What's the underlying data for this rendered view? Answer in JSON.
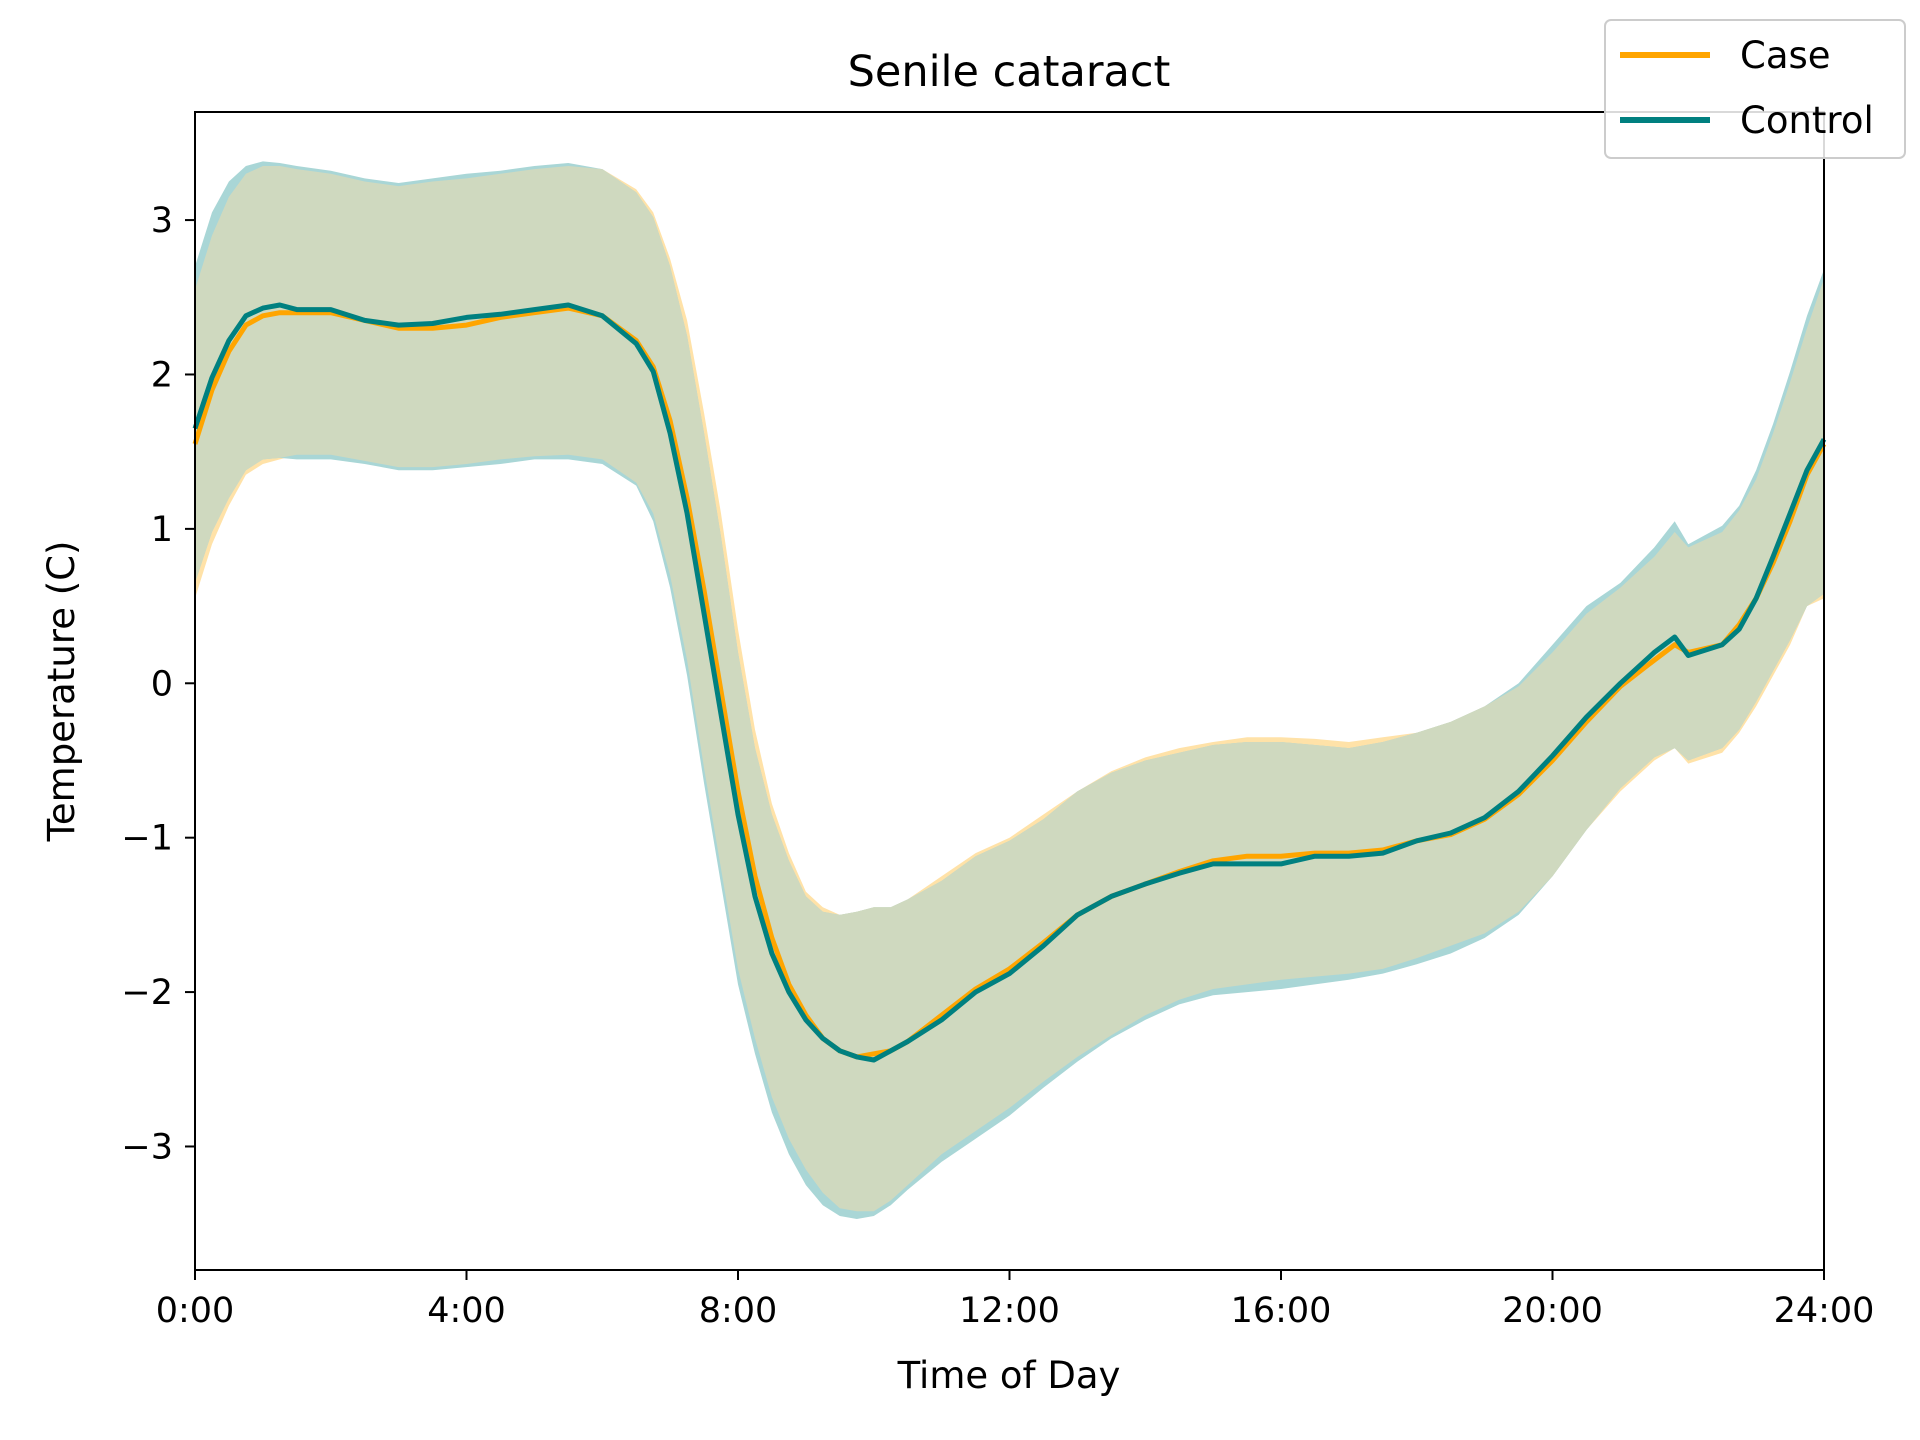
{
  "chart_data": {
    "type": "line",
    "title": "Senile cataract",
    "xlabel": "Time of Day",
    "ylabel": "Temperature (C)",
    "xlim": [
      0,
      24
    ],
    "ylim": [
      -3.8,
      3.7
    ],
    "xticks": [
      0,
      4,
      8,
      12,
      16,
      20,
      24
    ],
    "xtick_labels": [
      "0:00",
      "4:00",
      "8:00",
      "12:00",
      "16:00",
      "20:00",
      "24:00"
    ],
    "yticks": [
      3,
      2,
      1,
      0,
      -1,
      -2,
      -3
    ],
    "ytick_labels": [
      "3",
      "2",
      "1",
      "0",
      "−1",
      "−2",
      "−3"
    ],
    "grid": false,
    "legend_position": "top-right",
    "colors": {
      "case_line": "#FFA500",
      "case_band": "#FFE2A8",
      "control_line": "#008080",
      "control_band": "#A9D6D6",
      "overlap_band": "#CFD9BF"
    },
    "series": [
      {
        "name": "Case",
        "x": [
          0,
          0.25,
          0.5,
          0.75,
          1,
          1.25,
          1.5,
          2,
          2.5,
          3,
          3.5,
          4,
          4.5,
          5,
          5.5,
          6,
          6.5,
          6.75,
          7,
          7.25,
          7.5,
          7.75,
          8,
          8.25,
          8.5,
          8.75,
          9,
          9.25,
          9.5,
          9.75,
          10,
          10.25,
          10.5,
          11,
          11.5,
          12,
          12.5,
          13,
          13.5,
          14,
          14.5,
          15,
          15.5,
          16,
          16.5,
          17,
          17.5,
          18,
          18.5,
          19,
          19.5,
          20,
          20.5,
          21,
          21.5,
          21.8,
          22,
          22.5,
          22.75,
          23,
          23.25,
          23.5,
          23.75,
          24
        ],
        "mean": [
          1.55,
          1.9,
          2.15,
          2.32,
          2.38,
          2.4,
          2.4,
          2.4,
          2.35,
          2.3,
          2.3,
          2.32,
          2.37,
          2.4,
          2.43,
          2.38,
          2.22,
          2.05,
          1.7,
          1.2,
          0.6,
          -0.05,
          -0.7,
          -1.25,
          -1.65,
          -1.95,
          -2.15,
          -2.3,
          -2.38,
          -2.42,
          -2.4,
          -2.38,
          -2.32,
          -2.15,
          -1.98,
          -1.85,
          -1.68,
          -1.5,
          -1.38,
          -1.3,
          -1.22,
          -1.15,
          -1.12,
          -1.12,
          -1.1,
          -1.1,
          -1.08,
          -1.02,
          -0.98,
          -0.88,
          -0.72,
          -0.5,
          -0.25,
          -0.02,
          0.15,
          0.25,
          0.2,
          0.25,
          0.38,
          0.55,
          0.78,
          1.05,
          1.35,
          1.55
        ],
        "upper": [
          2.55,
          2.9,
          3.15,
          3.3,
          3.35,
          3.35,
          3.33,
          3.3,
          3.25,
          3.22,
          3.25,
          3.27,
          3.3,
          3.33,
          3.35,
          3.33,
          3.2,
          3.05,
          2.75,
          2.35,
          1.75,
          1.1,
          0.35,
          -0.3,
          -0.78,
          -1.1,
          -1.35,
          -1.45,
          -1.5,
          -1.48,
          -1.45,
          -1.45,
          -1.4,
          -1.25,
          -1.1,
          -1.0,
          -0.85,
          -0.7,
          -0.57,
          -0.48,
          -0.42,
          -0.38,
          -0.35,
          -0.35,
          -0.36,
          -0.38,
          -0.35,
          -0.32,
          -0.25,
          -0.15,
          -0.02,
          0.2,
          0.45,
          0.62,
          0.82,
          0.98,
          0.88,
          0.98,
          1.12,
          1.32,
          1.62,
          1.95,
          2.3,
          2.62
        ],
        "lower": [
          0.55,
          0.9,
          1.15,
          1.35,
          1.42,
          1.45,
          1.48,
          1.48,
          1.44,
          1.4,
          1.4,
          1.42,
          1.45,
          1.47,
          1.48,
          1.45,
          1.3,
          1.1,
          0.7,
          0.15,
          -0.55,
          -1.2,
          -1.85,
          -2.3,
          -2.68,
          -2.95,
          -3.15,
          -3.3,
          -3.4,
          -3.42,
          -3.42,
          -3.35,
          -3.25,
          -3.05,
          -2.9,
          -2.75,
          -2.58,
          -2.42,
          -2.28,
          -2.15,
          -2.05,
          -1.98,
          -1.95,
          -1.92,
          -1.9,
          -1.88,
          -1.85,
          -1.78,
          -1.7,
          -1.62,
          -1.48,
          -1.25,
          -0.95,
          -0.7,
          -0.5,
          -0.42,
          -0.52,
          -0.45,
          -0.32,
          -0.15,
          0.05,
          0.25,
          0.5,
          0.55
        ]
      },
      {
        "name": "Control",
        "x": [
          0,
          0.25,
          0.5,
          0.75,
          1,
          1.25,
          1.5,
          2,
          2.5,
          3,
          3.5,
          4,
          4.5,
          5,
          5.5,
          6,
          6.5,
          6.75,
          7,
          7.25,
          7.5,
          7.75,
          8,
          8.25,
          8.5,
          8.75,
          9,
          9.25,
          9.5,
          9.75,
          10,
          10.25,
          10.5,
          11,
          11.5,
          12,
          12.5,
          13,
          13.5,
          14,
          14.5,
          15,
          15.5,
          16,
          16.5,
          17,
          17.5,
          18,
          18.5,
          19,
          19.5,
          20,
          20.5,
          21,
          21.5,
          21.8,
          22,
          22.5,
          22.75,
          23,
          23.25,
          23.5,
          23.75,
          24
        ],
        "mean": [
          1.65,
          1.98,
          2.22,
          2.38,
          2.43,
          2.45,
          2.42,
          2.42,
          2.35,
          2.32,
          2.33,
          2.37,
          2.39,
          2.42,
          2.45,
          2.38,
          2.2,
          2.02,
          1.62,
          1.1,
          0.45,
          -0.2,
          -0.85,
          -1.38,
          -1.75,
          -2.0,
          -2.18,
          -2.3,
          -2.38,
          -2.42,
          -2.44,
          -2.38,
          -2.32,
          -2.18,
          -2.0,
          -1.88,
          -1.7,
          -1.5,
          -1.38,
          -1.3,
          -1.23,
          -1.17,
          -1.17,
          -1.17,
          -1.12,
          -1.12,
          -1.1,
          -1.02,
          -0.97,
          -0.87,
          -0.7,
          -0.47,
          -0.22,
          0.0,
          0.2,
          0.3,
          0.18,
          0.25,
          0.35,
          0.55,
          0.82,
          1.1,
          1.38,
          1.58
        ],
        "upper": [
          2.7,
          3.05,
          3.25,
          3.35,
          3.38,
          3.37,
          3.35,
          3.32,
          3.27,
          3.24,
          3.27,
          3.3,
          3.32,
          3.35,
          3.37,
          3.33,
          3.18,
          3.02,
          2.7,
          2.25,
          1.62,
          0.95,
          0.2,
          -0.42,
          -0.85,
          -1.15,
          -1.38,
          -1.48,
          -1.5,
          -1.48,
          -1.45,
          -1.45,
          -1.4,
          -1.28,
          -1.12,
          -1.02,
          -0.88,
          -0.7,
          -0.58,
          -0.5,
          -0.45,
          -0.4,
          -0.38,
          -0.38,
          -0.4,
          -0.42,
          -0.38,
          -0.32,
          -0.25,
          -0.15,
          0.0,
          0.25,
          0.5,
          0.65,
          0.88,
          1.05,
          0.9,
          1.02,
          1.15,
          1.38,
          1.68,
          2.02,
          2.38,
          2.68
        ],
        "lower": [
          0.65,
          0.98,
          1.2,
          1.38,
          1.45,
          1.46,
          1.45,
          1.45,
          1.42,
          1.38,
          1.38,
          1.4,
          1.42,
          1.45,
          1.45,
          1.42,
          1.28,
          1.05,
          0.62,
          0.05,
          -0.65,
          -1.3,
          -1.95,
          -2.4,
          -2.78,
          -3.05,
          -3.25,
          -3.38,
          -3.45,
          -3.47,
          -3.45,
          -3.38,
          -3.28,
          -3.1,
          -2.95,
          -2.8,
          -2.62,
          -2.45,
          -2.3,
          -2.18,
          -2.08,
          -2.02,
          -2.0,
          -1.98,
          -1.95,
          -1.92,
          -1.88,
          -1.82,
          -1.75,
          -1.65,
          -1.5,
          -1.25,
          -0.95,
          -0.68,
          -0.48,
          -0.42,
          -0.5,
          -0.42,
          -0.3,
          -0.12,
          0.08,
          0.28,
          0.5,
          0.58
        ]
      }
    ]
  }
}
